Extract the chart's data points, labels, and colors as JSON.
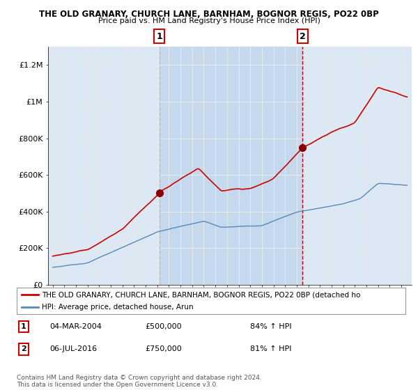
{
  "title1": "THE OLD GRANARY, CHURCH LANE, BARNHAM, BOGNOR REGIS, PO22 0BP",
  "title2": "Price paid vs. HM Land Registry's House Price Index (HPI)",
  "background_color": "#ffffff",
  "plot_bg_color": "#dce9f5",
  "plot_bg_shaded_color": "#c5d9ee",
  "grid_color": "#e8e8e8",
  "red_line_color": "#cc0000",
  "blue_line_color": "#5588bb",
  "dash1_color": "#bbbbbb",
  "dash2_color": "#cc0000",
  "legend_label1": "THE OLD GRANARY, CHURCH LANE, BARNHAM, BOGNOR REGIS, PO22 0BP (detached ho",
  "legend_label2": "HPI: Average price, detached house, Arun",
  "sale1_date": 2004.17,
  "sale1_price": 500000,
  "sale2_date": 2016.51,
  "sale2_price": 750000,
  "annotation1_date": "04-MAR-2004",
  "annotation1_price": "£500,000",
  "annotation1_hpi": "84% ↑ HPI",
  "annotation2_date": "06-JUL-2016",
  "annotation2_price": "£750,000",
  "annotation2_hpi": "81% ↑ HPI",
  "copyright": "Contains HM Land Registry data © Crown copyright and database right 2024.\nThis data is licensed under the Open Government Licence v3.0.",
  "ylim": [
    0,
    1300000
  ],
  "yticks": [
    0,
    200000,
    400000,
    600000,
    800000,
    1000000,
    1200000
  ],
  "ytick_labels": [
    "£0",
    "£200K",
    "£400K",
    "£600K",
    "£800K",
    "£1M",
    "£1.2M"
  ],
  "xstart": 1995,
  "xend": 2025
}
